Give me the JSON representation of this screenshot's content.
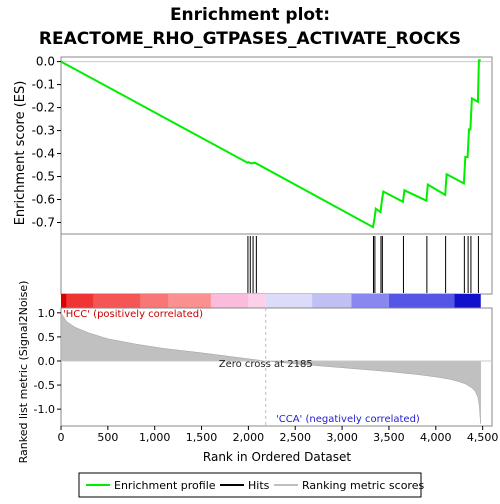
{
  "chart_data": {
    "type": "line",
    "title_line1": "Enrichment plot:",
    "title_line2": "REACTOME_RHO_GTPASES_ACTIVATE_ROCKS",
    "es_panel": {
      "ylabel": "Enrichment score (ES)",
      "ylim": [
        -0.75,
        0.02
      ],
      "yticks": [
        "0.0",
        "-0.1",
        "-0.2",
        "-0.3",
        "-0.4",
        "-0.5",
        "-0.6",
        "-0.7"
      ],
      "ytick_values": [
        0.0,
        -0.1,
        -0.2,
        -0.3,
        -0.4,
        -0.5,
        -0.6,
        -0.7
      ],
      "series_name": "Enrichment profile",
      "color": "#00ee00",
      "x": [
        0,
        1990,
        2000,
        2030,
        2070,
        3330,
        3345,
        3360,
        3410,
        3425,
        3440,
        3650,
        3665,
        3900,
        3915,
        4100,
        4115,
        4300,
        4315,
        4340,
        4355,
        4370,
        4385,
        4450,
        4460,
        4480
      ],
      "y": [
        0.0,
        -0.44,
        -0.437,
        -0.443,
        -0.44,
        -0.72,
        -0.685,
        -0.64,
        -0.655,
        -0.605,
        -0.565,
        -0.61,
        -0.56,
        -0.605,
        -0.535,
        -0.58,
        -0.49,
        -0.53,
        -0.415,
        -0.415,
        -0.295,
        -0.295,
        -0.16,
        -0.175,
        0.005,
        0.005
      ]
    },
    "hits": {
      "series_name": "Hits",
      "positions": [
        1995,
        2020,
        2050,
        2085,
        3335,
        3350,
        3415,
        3430,
        3655,
        3905,
        4105,
        4305,
        4345,
        4375,
        4455
      ]
    },
    "rank_metric_panel": {
      "ylabel": "Ranked list metric (Signal2Noise)",
      "ylim": [
        -1.35,
        1.1
      ],
      "yticks": [
        "1.0",
        "0.5",
        "0.0",
        "-0.5",
        "-1.0"
      ],
      "ytick_values": [
        1.0,
        0.5,
        0.0,
        -0.5,
        -1.0
      ],
      "series_name": "Ranking metric scores",
      "color": "#c0c0c0",
      "x": [
        0,
        60,
        150,
        300,
        500,
        800,
        1100,
        1500,
        1900,
        2185,
        2500,
        3000,
        3500,
        3800,
        4000,
        4150,
        4250,
        4320,
        4380,
        4420,
        4450,
        4465,
        4477
      ],
      "y": [
        1.0,
        0.82,
        0.7,
        0.58,
        0.46,
        0.35,
        0.26,
        0.17,
        0.07,
        0.0,
        -0.06,
        -0.14,
        -0.22,
        -0.28,
        -0.33,
        -0.38,
        -0.43,
        -0.48,
        -0.55,
        -0.63,
        -0.75,
        -0.95,
        -1.3
      ],
      "zero_cross_label": "Zero cross at 2185",
      "zero_cross_x": 2185,
      "pos_label": "'HCC' (positively correlated)",
      "neg_label": "'CCA' (negatively correlated)"
    },
    "color_bar": {
      "segments": [
        {
          "from": 0,
          "to": 60,
          "color": "#dd0000"
        },
        {
          "from": 60,
          "to": 350,
          "color": "#f03333"
        },
        {
          "from": 350,
          "to": 850,
          "color": "#f55555"
        },
        {
          "from": 850,
          "to": 1150,
          "color": "#f77777"
        },
        {
          "from": 1150,
          "to": 1600,
          "color": "#fa9090"
        },
        {
          "from": 1600,
          "to": 2000,
          "color": "#fbbcdc"
        },
        {
          "from": 2000,
          "to": 2185,
          "color": "#fcd0e8"
        },
        {
          "from": 2185,
          "to": 2680,
          "color": "#dcdcfa"
        },
        {
          "from": 2680,
          "to": 3100,
          "color": "#c0c0f5"
        },
        {
          "from": 3100,
          "to": 3500,
          "color": "#8888f0"
        },
        {
          "from": 3500,
          "to": 4200,
          "color": "#5555e6"
        },
        {
          "from": 4200,
          "to": 4480,
          "color": "#1111cc"
        }
      ]
    },
    "xaxis": {
      "xlabel": "Rank in Ordered Dataset",
      "xlim": [
        0,
        4600
      ],
      "xticks": [
        "0",
        "500",
        "1,000",
        "1,500",
        "2,000",
        "2,500",
        "3,000",
        "3,500",
        "4,000",
        "4,500"
      ],
      "xtick_values": [
        0,
        500,
        1000,
        1500,
        2000,
        2500,
        3000,
        3500,
        4000,
        4500
      ]
    },
    "legend": {
      "placement": "bottom",
      "entries": [
        {
          "label": "Enrichment profile",
          "color": "#00ee00"
        },
        {
          "label": "Hits",
          "color": "#000000"
        },
        {
          "label": "Ranking metric scores",
          "color": "#c0c0c0"
        }
      ]
    }
  }
}
